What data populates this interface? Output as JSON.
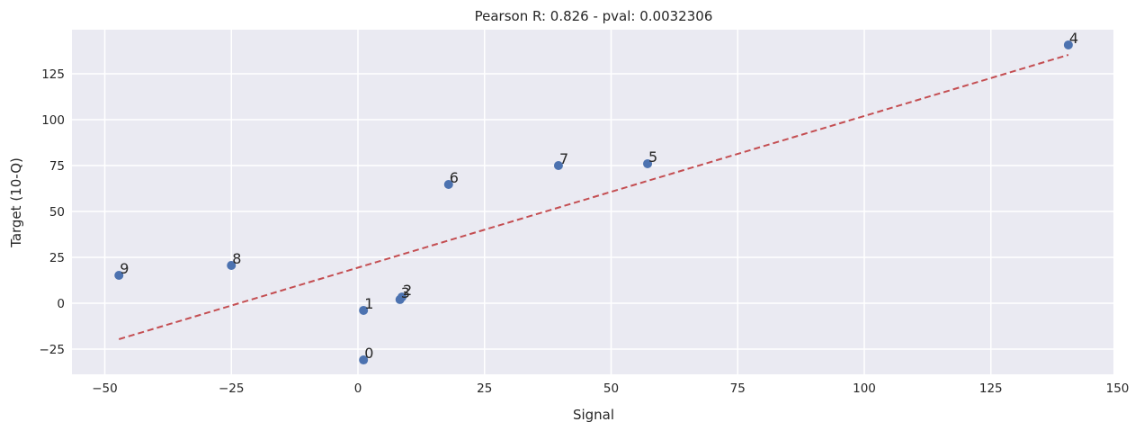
{
  "chart_data": {
    "type": "scatter",
    "title": "Pearson R: 0.826 - pval: 0.0032306",
    "xlabel": "Signal",
    "ylabel": "Target (10-Q)",
    "xlim": [
      -55,
      151.5
    ],
    "ylim": [
      -38.5,
      148
    ],
    "xticks": [
      -50,
      -25,
      0,
      25,
      50,
      75,
      100,
      125,
      150
    ],
    "yticks": [
      -25,
      0,
      25,
      50,
      75,
      100,
      125
    ],
    "grid": true,
    "points": [
      {
        "label": "0",
        "x": 1.1,
        "y": -30.9
      },
      {
        "label": "1",
        "x": 1.1,
        "y": -3.9
      },
      {
        "label": "2",
        "x": 8.7,
        "y": 3.4
      },
      {
        "label": "3",
        "x": 8.3,
        "y": 2.0
      },
      {
        "label": "4",
        "x": 140.3,
        "y": 140.7
      },
      {
        "label": "5",
        "x": 57.2,
        "y": 76.0
      },
      {
        "label": "6",
        "x": 17.9,
        "y": 64.7
      },
      {
        "label": "7",
        "x": 39.6,
        "y": 75.0
      },
      {
        "label": "8",
        "x": -25.0,
        "y": 20.6
      },
      {
        "label": "9",
        "x": -47.2,
        "y": 15.2
      }
    ],
    "fit_line": {
      "x": [
        -47.2,
        140.3
      ],
      "y": [
        -19.6,
        135.3
      ],
      "style": "dashed"
    },
    "colors": {
      "points": "#4c72b0",
      "fit_line": "#c44e52",
      "plot_bg": "#eaeaf2",
      "grid": "#ffffff"
    }
  }
}
